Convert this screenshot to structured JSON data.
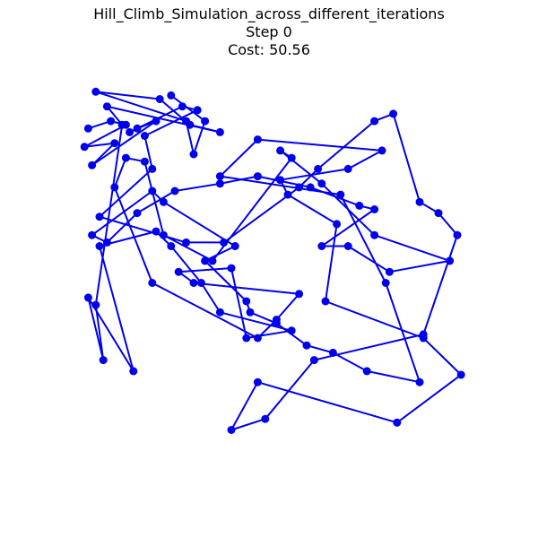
{
  "header": {
    "title": "Hill_Climb_Simulation_across_different_iterations",
    "step_label": "Step 0",
    "cost_label": "Cost: 50.56"
  },
  "chart_data": {
    "type": "line",
    "title": "Hill_Climb_Simulation_across_different_iterations",
    "subtitle": "Step 0",
    "annotation": "Cost: 50.56",
    "axes_visible": false,
    "grid": false,
    "line_color": "#0000ee",
    "marker_color": "#0000ee",
    "marker": "circle",
    "xlim": [
      0,
      100
    ],
    "ylim": [
      0,
      100
    ],
    "series": [
      {
        "x": [
          2,
          8,
          12,
          1,
          9,
          3,
          20,
          15,
          13,
          27,
          31,
          17,
          19,
          5,
          28,
          38,
          58,
          63,
          78,
          83,
          90,
          95,
          100,
          91,
          62,
          49,
          40,
          47,
          84,
          101,
          91,
          65,
          68,
          55,
          53,
          71,
          80,
          47,
          37,
          69,
          81,
          90,
          76,
          67,
          60,
          52,
          45,
          44,
          33,
          41,
          22,
          19,
          3,
          7,
          15,
          25,
          37,
          47,
          61,
          74,
          78,
          64,
          71,
          82,
          98,
          78,
          64,
          53,
          56,
          35,
          22,
          17,
          12,
          9,
          19,
          47,
          52,
          58,
          30,
          26,
          40,
          44,
          56,
          37,
          32,
          24,
          20,
          5,
          14,
          2,
          6,
          4,
          11,
          7,
          37,
          29,
          21,
          4,
          28,
          30,
          33,
          24
        ],
        "y": [
          87,
          89,
          88,
          82,
          83,
          77,
          89,
          87,
          86,
          93,
          92,
          85,
          76,
          63,
          56,
          56,
          71,
          76,
          89,
          91,
          67,
          64,
          58,
          31,
          24,
          8,
          5,
          18,
          7,
          20,
          30,
          40,
          61,
          69,
          73,
          76,
          81,
          84,
          74,
          69,
          45,
          18,
          21,
          26,
          28,
          34,
          37,
          40,
          51,
          55,
          67,
          70,
          58,
          56,
          64,
          70,
          72,
          74,
          71,
          66,
          65,
          55,
          55,
          48,
          51,
          58,
          72,
          81,
          79,
          51,
          58,
          78,
          79,
          71,
          45,
          30,
          35,
          42,
          45,
          48,
          49,
          30,
          32,
          37,
          45,
          55,
          59,
          55,
          21,
          41,
          24,
          39,
          88,
          93,
          86,
          88,
          95,
          97,
          89,
          80,
          89,
          96
        ]
      }
    ]
  }
}
